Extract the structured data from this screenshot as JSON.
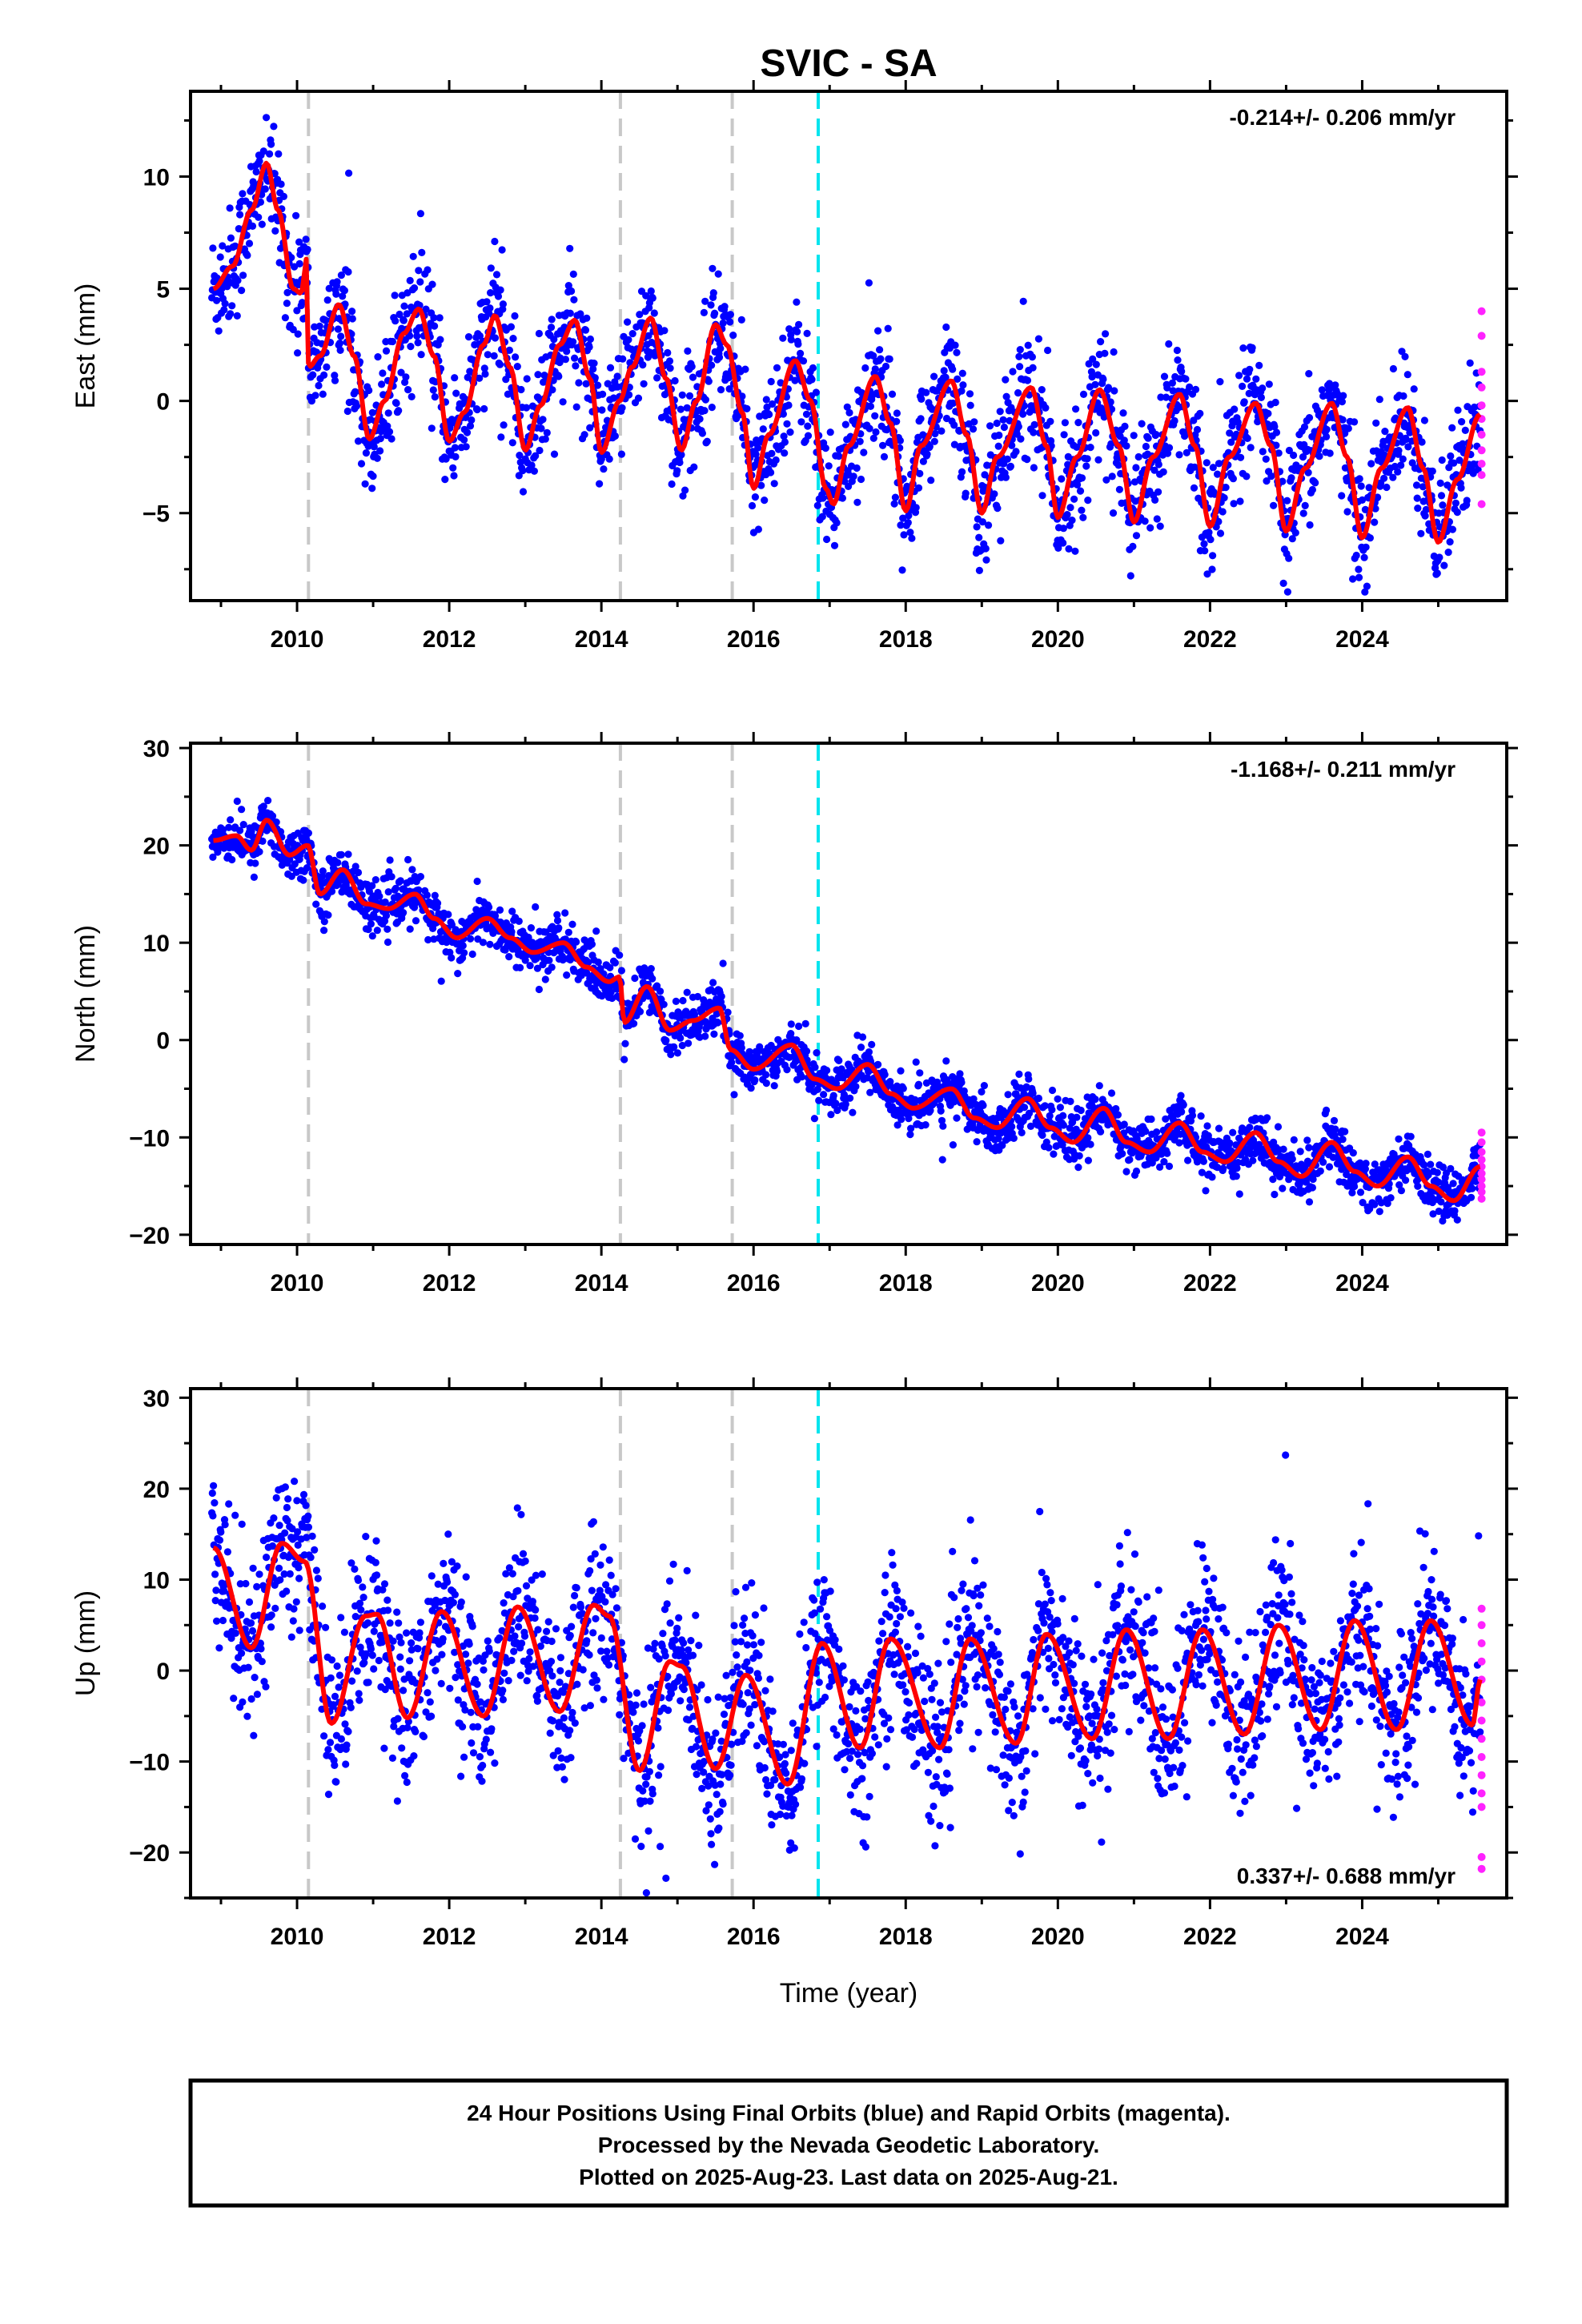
{
  "title": "SVIC - SA",
  "xlabel": "Time (year)",
  "footer": {
    "lines": [
      "24 Hour Positions Using Final Orbits (blue) and Rapid Orbits (magenta).",
      "Processed by the Nevada Geodetic Laboratory.",
      "Plotted on 2025-Aug-23. Last data on 2025-Aug-21."
    ]
  },
  "colors": {
    "final_orbits": "#0000ff",
    "rapid_orbits": "#ff22ff",
    "model_fit": "#ff0000",
    "equipment_change": "#c8c8c8",
    "earthquake": "#00e5ee"
  },
  "chart_data": [
    {
      "type": "scatter",
      "ylabel": "East (mm)",
      "rate_label": "-0.214+/- 0.206 mm/yr",
      "rate_position": "top-right",
      "xlim": [
        2008.6,
        2025.9
      ],
      "ylim": [
        -8.9,
        13.8
      ],
      "x_ticks": [
        2010,
        2012,
        2014,
        2016,
        2018,
        2020,
        2022,
        2024
      ],
      "y_ticks": [
        -5,
        0,
        5,
        10
      ],
      "vlines_gray": [
        2010.15,
        2014.25,
        2015.72
      ],
      "vline_cyan": 2016.85,
      "rate_mm_per_yr": -0.214,
      "series": [
        {
          "name": "model",
          "points": [
            [
              2008.9,
              5.0
            ],
            [
              2009.15,
              6.0
            ],
            [
              2009.4,
              8.5
            ],
            [
              2009.6,
              10.6
            ],
            [
              2009.75,
              8.5
            ],
            [
              2009.95,
              5.0
            ],
            [
              2010.05,
              4.8
            ],
            [
              2010.14,
              6.5
            ],
            [
              2010.15,
              1.5
            ],
            [
              2010.3,
              2.0
            ],
            [
              2010.55,
              4.3
            ],
            [
              2010.75,
              2.0
            ],
            [
              2010.95,
              -1.7
            ],
            [
              2011.15,
              0.0
            ],
            [
              2011.4,
              3.0
            ],
            [
              2011.6,
              4.1
            ],
            [
              2011.8,
              2.0
            ],
            [
              2012.0,
              -1.8
            ],
            [
              2012.2,
              -0.5
            ],
            [
              2012.45,
              2.5
            ],
            [
              2012.6,
              3.8
            ],
            [
              2012.8,
              1.5
            ],
            [
              2013.0,
              -2.2
            ],
            [
              2013.2,
              -0.2
            ],
            [
              2013.45,
              2.5
            ],
            [
              2013.65,
              3.6
            ],
            [
              2013.85,
              1.0
            ],
            [
              2014.0,
              -2.3
            ],
            [
              2014.24,
              0.0
            ],
            [
              2014.4,
              1.5
            ],
            [
              2014.65,
              3.7
            ],
            [
              2014.85,
              1.0
            ],
            [
              2015.05,
              -2.2
            ],
            [
              2015.25,
              0.0
            ],
            [
              2015.5,
              3.4
            ],
            [
              2015.65,
              2.5
            ],
            [
              2015.85,
              -0.5
            ],
            [
              2016.0,
              -3.9
            ],
            [
              2016.2,
              -1.5
            ],
            [
              2016.55,
              1.8
            ],
            [
              2016.75,
              0.0
            ],
            [
              2016.95,
              -3.9
            ],
            [
              2017.05,
              -4.6
            ],
            [
              2017.25,
              -2.0
            ],
            [
              2017.6,
              1.1
            ],
            [
              2017.8,
              -1.0
            ],
            [
              2018.0,
              -4.9
            ],
            [
              2018.2,
              -2.0
            ],
            [
              2018.6,
              0.9
            ],
            [
              2018.8,
              -1.5
            ],
            [
              2019.0,
              -5.0
            ],
            [
              2019.2,
              -2.5
            ],
            [
              2019.65,
              0.6
            ],
            [
              2019.85,
              -2.0
            ],
            [
              2020.0,
              -5.2
            ],
            [
              2020.25,
              -2.5
            ],
            [
              2020.55,
              0.5
            ],
            [
              2020.8,
              -2.0
            ],
            [
              2021.0,
              -5.4
            ],
            [
              2021.25,
              -2.5
            ],
            [
              2021.6,
              0.3
            ],
            [
              2021.8,
              -2.0
            ],
            [
              2022.0,
              -5.6
            ],
            [
              2022.25,
              -2.5
            ],
            [
              2022.6,
              -0.1
            ],
            [
              2022.8,
              -2.0
            ],
            [
              2023.0,
              -5.8
            ],
            [
              2023.25,
              -3.0
            ],
            [
              2023.6,
              -0.1
            ],
            [
              2023.8,
              -2.5
            ],
            [
              2024.0,
              -6.1
            ],
            [
              2024.25,
              -3.0
            ],
            [
              2024.6,
              -0.3
            ],
            [
              2024.8,
              -3.0
            ],
            [
              2025.0,
              -6.3
            ],
            [
              2025.25,
              -3.5
            ],
            [
              2025.55,
              -0.6
            ]
          ],
          "pattern": [
            [
              2008.9,
              5.0
            ],
            [
              2009.6,
              10.6
            ],
            [
              2010.15,
              1.3
            ],
            [
              2010.55,
              4.3
            ],
            [
              2010.95,
              -1.7
            ],
            [
              2011.6,
              4.1
            ],
            [
              2012.0,
              -1.8
            ],
            [
              2012.6,
              3.8
            ],
            [
              2013.0,
              -2.2
            ],
            [
              2013.65,
              3.6
            ],
            [
              2014.0,
              -2.3
            ],
            [
              2014.65,
              3.7
            ],
            [
              2015.05,
              -2.2
            ],
            [
              2015.5,
              3.4
            ],
            [
              2016.0,
              -3.9
            ],
            [
              2016.55,
              1.8
            ],
            [
              2017.05,
              -4.6
            ],
            [
              2017.6,
              1.1
            ],
            [
              2018.0,
              -4.9
            ],
            [
              2018.6,
              0.9
            ],
            [
              2019.0,
              -5.0
            ],
            [
              2019.65,
              0.6
            ],
            [
              2020.0,
              -5.2
            ],
            [
              2020.55,
              0.5
            ],
            [
              2021.0,
              -5.4
            ],
            [
              2021.6,
              0.3
            ],
            [
              2022.0,
              -5.6
            ],
            [
              2022.6,
              -0.1
            ],
            [
              2023.0,
              -5.8
            ],
            [
              2023.6,
              -0.1
            ],
            [
              2024.0,
              -6.1
            ],
            [
              2024.6,
              -0.3
            ],
            [
              2025.0,
              -6.3
            ],
            [
              2025.55,
              -0.6
            ]
          ],
          "scatter_sd_mm": 1.3,
          "n_points": 2400
        }
      ],
      "rapid_points": [
        [
          2025.57,
          4.0
        ],
        [
          2025.57,
          2.9
        ],
        [
          2025.57,
          1.3
        ],
        [
          2025.57,
          0.6
        ],
        [
          2025.57,
          -0.2
        ],
        [
          2025.57,
          -0.8
        ],
        [
          2025.57,
          -1.5
        ],
        [
          2025.57,
          -2.2
        ],
        [
          2025.57,
          -2.8
        ],
        [
          2025.57,
          -3.3
        ],
        [
          2025.57,
          -4.6
        ]
      ]
    },
    {
      "type": "scatter",
      "ylabel": "North (mm)",
      "rate_label": "-1.168+/- 0.211 mm/yr",
      "rate_position": "top-right",
      "xlim": [
        2008.6,
        2025.9
      ],
      "ylim": [
        -21.0,
        30.5
      ],
      "x_ticks": [
        2010,
        2012,
        2014,
        2016,
        2018,
        2020,
        2022,
        2024
      ],
      "y_ticks": [
        -20,
        -10,
        0,
        10,
        20,
        30
      ],
      "vlines_gray": [
        2010.15,
        2014.25,
        2015.72
      ],
      "vline_cyan": 2016.85,
      "rate_mm_per_yr": -1.168,
      "series": [
        {
          "name": "model",
          "points": [
            [
              2008.9,
              20.5
            ],
            [
              2009.2,
              21.0
            ],
            [
              2009.4,
              19.5
            ],
            [
              2009.6,
              22.6
            ],
            [
              2009.9,
              19.0
            ],
            [
              2010.14,
              20.0
            ],
            [
              2010.3,
              15.0
            ],
            [
              2010.6,
              17.5
            ],
            [
              2010.9,
              14.0
            ],
            [
              2011.2,
              13.5
            ],
            [
              2011.55,
              15.0
            ],
            [
              2011.8,
              12.5
            ],
            [
              2012.1,
              10.5
            ],
            [
              2012.5,
              12.5
            ],
            [
              2012.8,
              10.5
            ],
            [
              2013.1,
              9.0
            ],
            [
              2013.5,
              10.0
            ],
            [
              2013.8,
              7.5
            ],
            [
              2014.1,
              6.0
            ],
            [
              2014.24,
              6.5
            ],
            [
              2014.3,
              1.8
            ],
            [
              2014.6,
              5.5
            ],
            [
              2014.9,
              1.0
            ],
            [
              2015.2,
              2.0
            ],
            [
              2015.55,
              3.3
            ],
            [
              2015.7,
              -1.0
            ],
            [
              2016.0,
              -3.0
            ],
            [
              2016.5,
              -0.5
            ],
            [
              2016.8,
              -4.0
            ],
            [
              2017.1,
              -5.0
            ],
            [
              2017.5,
              -2.5
            ],
            [
              2017.8,
              -5.5
            ],
            [
              2018.1,
              -7.0
            ],
            [
              2018.6,
              -5.0
            ],
            [
              2018.9,
              -8.0
            ],
            [
              2019.2,
              -9.0
            ],
            [
              2019.6,
              -6.0
            ],
            [
              2019.9,
              -9.0
            ],
            [
              2020.2,
              -10.5
            ],
            [
              2020.6,
              -7.0
            ],
            [
              2020.9,
              -10.5
            ],
            [
              2021.2,
              -11.5
            ],
            [
              2021.6,
              -8.5
            ],
            [
              2021.9,
              -11.5
            ],
            [
              2022.2,
              -12.5
            ],
            [
              2022.6,
              -9.5
            ],
            [
              2022.9,
              -12.5
            ],
            [
              2023.2,
              -14.0
            ],
            [
              2023.6,
              -10.5
            ],
            [
              2023.9,
              -13.5
            ],
            [
              2024.2,
              -15.0
            ],
            [
              2024.6,
              -12.0
            ],
            [
              2024.9,
              -15.0
            ],
            [
              2025.2,
              -16.5
            ],
            [
              2025.55,
              -13.0
            ]
          ],
          "scatter_sd_mm": 1.3,
          "n_points": 2400
        }
      ],
      "rapid_points": [
        [
          2025.57,
          -9.5
        ],
        [
          2025.57,
          -10.5
        ],
        [
          2025.57,
          -11.5
        ],
        [
          2025.57,
          -12.3
        ],
        [
          2025.57,
          -13.0
        ],
        [
          2025.57,
          -13.7
        ],
        [
          2025.57,
          -14.3
        ],
        [
          2025.57,
          -15.0
        ],
        [
          2025.57,
          -15.6
        ],
        [
          2025.57,
          -16.3
        ]
      ]
    },
    {
      "type": "scatter",
      "ylabel": "Up (mm)",
      "rate_label": "0.337+/- 0.688 mm/yr",
      "rate_position": "bottom-right",
      "xlim": [
        2008.6,
        2025.9
      ],
      "ylim": [
        -25.0,
        31.0
      ],
      "x_ticks": [
        2010,
        2012,
        2014,
        2016,
        2018,
        2020,
        2022,
        2024
      ],
      "y_ticks": [
        -20,
        -10,
        0,
        10,
        20,
        30
      ],
      "vlines_gray": [
        2010.15,
        2014.25,
        2015.72
      ],
      "vline_cyan": 2016.85,
      "rate_mm_per_yr": 0.337,
      "series": [
        {
          "name": "model",
          "points": [
            [
              2008.9,
              13.5
            ],
            [
              2009.4,
              2.5
            ],
            [
              2009.8,
              14.0
            ],
            [
              2010.1,
              12.0
            ],
            [
              2010.45,
              -5.8
            ],
            [
              2010.9,
              6.0
            ],
            [
              2011.05,
              6.2
            ],
            [
              2011.45,
              -5.2
            ],
            [
              2011.9,
              6.5
            ],
            [
              2012.45,
              -5.0
            ],
            [
              2012.9,
              7.0
            ],
            [
              2013.45,
              -4.5
            ],
            [
              2013.9,
              7.2
            ],
            [
              2014.1,
              6.0
            ],
            [
              2014.5,
              -11.0
            ],
            [
              2014.9,
              1.0
            ],
            [
              2015.05,
              0.5
            ],
            [
              2015.5,
              -10.8
            ],
            [
              2015.9,
              -0.5
            ],
            [
              2016.45,
              -12.5
            ],
            [
              2016.9,
              3.0
            ],
            [
              2017.4,
              -8.5
            ],
            [
              2017.8,
              3.5
            ],
            [
              2018.45,
              -8.5
            ],
            [
              2018.85,
              3.5
            ],
            [
              2019.45,
              -8.0
            ],
            [
              2019.85,
              4.0
            ],
            [
              2020.45,
              -7.5
            ],
            [
              2020.9,
              4.5
            ],
            [
              2021.45,
              -7.5
            ],
            [
              2021.9,
              4.5
            ],
            [
              2022.45,
              -7.0
            ],
            [
              2022.9,
              5.0
            ],
            [
              2023.45,
              -6.5
            ],
            [
              2023.9,
              5.5
            ],
            [
              2024.45,
              -6.5
            ],
            [
              2024.9,
              5.5
            ],
            [
              2025.45,
              -6.0
            ],
            [
              2025.55,
              -1.0
            ]
          ],
          "scatter_sd_mm": 4.5,
          "n_points": 2400
        }
      ],
      "rapid_points": [
        [
          2025.57,
          6.8
        ],
        [
          2025.57,
          5.0
        ],
        [
          2025.57,
          3.0
        ],
        [
          2025.57,
          1.0
        ],
        [
          2025.57,
          -1.0
        ],
        [
          2025.57,
          -3.5
        ],
        [
          2025.57,
          -5.5
        ],
        [
          2025.57,
          -7.5
        ],
        [
          2025.57,
          -9.5
        ],
        [
          2025.57,
          -11.5
        ],
        [
          2025.57,
          -13.5
        ],
        [
          2025.57,
          -15.0
        ],
        [
          2025.57,
          -20.5
        ],
        [
          2025.57,
          -21.8
        ]
      ]
    }
  ]
}
